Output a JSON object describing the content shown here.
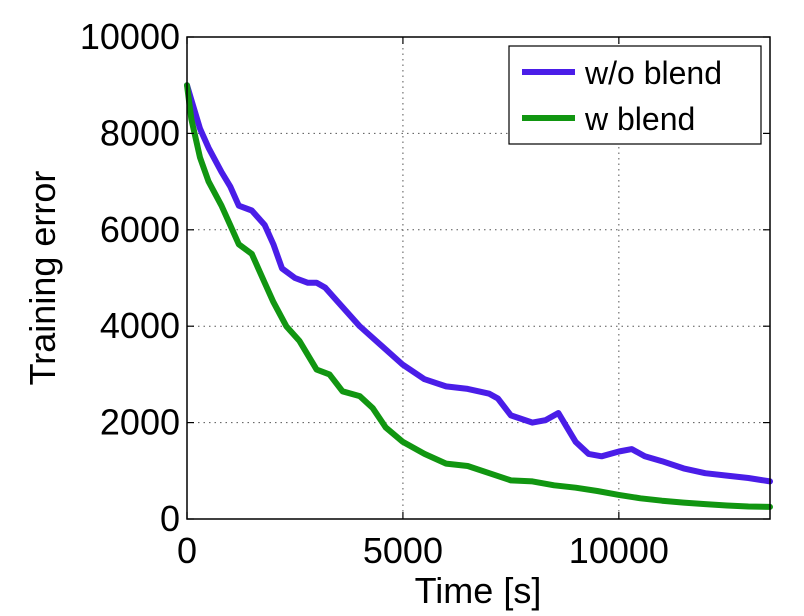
{
  "chart_data": {
    "type": "line",
    "xlabel": "Time [s]",
    "ylabel": "Training error",
    "xlim": [
      0,
      13500
    ],
    "ylim": [
      0,
      10000
    ],
    "xticks": [
      0,
      5000,
      10000
    ],
    "yticks": [
      0,
      2000,
      4000,
      6000,
      8000,
      10000
    ],
    "xtick_labels": [
      "0",
      "5000",
      "10000"
    ],
    "ytick_labels": [
      "0",
      "2000",
      "4000",
      "6000",
      "8000",
      "10000"
    ],
    "grid": true,
    "legend_position": "top-right",
    "series": [
      {
        "name": "w/o blend",
        "color": "#4a1de8",
        "x": [
          0,
          100,
          300,
          500,
          800,
          1000,
          1200,
          1500,
          1800,
          2000,
          2200,
          2500,
          2800,
          3000,
          3200,
          3500,
          4000,
          4500,
          5000,
          5500,
          6000,
          6500,
          7000,
          7200,
          7500,
          8000,
          8300,
          8600,
          8800,
          9000,
          9300,
          9600,
          10000,
          10300,
          10600,
          11000,
          11500,
          12000,
          12500,
          13000,
          13500
        ],
        "y": [
          9000,
          8700,
          8100,
          7700,
          7200,
          6900,
          6500,
          6400,
          6100,
          5700,
          5200,
          5000,
          4900,
          4900,
          4800,
          4500,
          4000,
          3600,
          3200,
          2900,
          2750,
          2700,
          2600,
          2500,
          2150,
          2000,
          2050,
          2200,
          1900,
          1600,
          1350,
          1300,
          1400,
          1450,
          1300,
          1200,
          1050,
          950,
          900,
          850,
          780
        ]
      },
      {
        "name": "w blend",
        "color": "#119611",
        "x": [
          0,
          100,
          300,
          500,
          800,
          1000,
          1200,
          1500,
          1800,
          2000,
          2300,
          2600,
          3000,
          3300,
          3600,
          4000,
          4300,
          4600,
          5000,
          5500,
          6000,
          6500,
          7000,
          7500,
          8000,
          8500,
          9000,
          9500,
          10000,
          10500,
          11000,
          11500,
          12000,
          12500,
          13000,
          13500
        ],
        "y": [
          9000,
          8300,
          7500,
          7000,
          6500,
          6100,
          5700,
          5500,
          4900,
          4500,
          4000,
          3700,
          3100,
          3000,
          2650,
          2550,
          2300,
          1900,
          1600,
          1350,
          1150,
          1100,
          950,
          800,
          780,
          700,
          650,
          580,
          500,
          430,
          380,
          340,
          310,
          280,
          260,
          250
        ]
      }
    ]
  }
}
